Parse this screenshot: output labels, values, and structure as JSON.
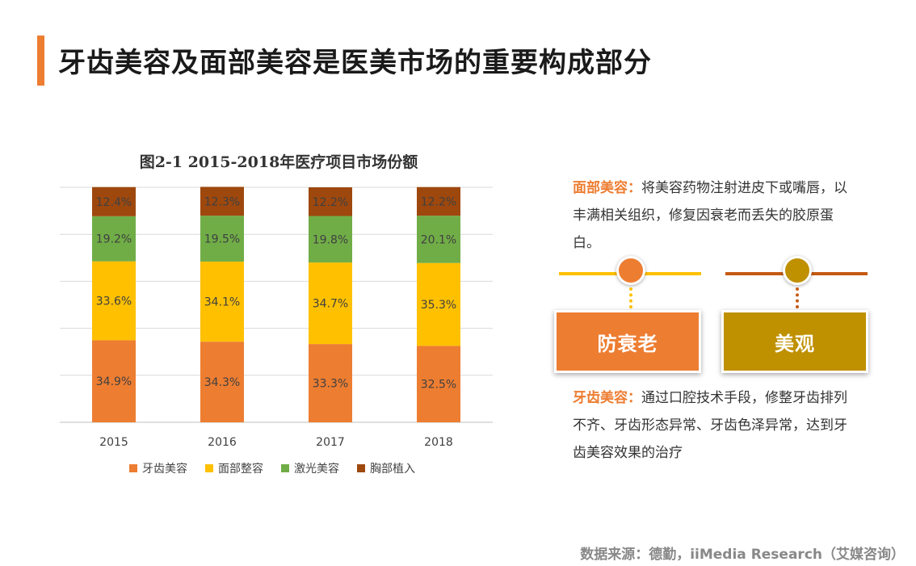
{
  "page_title": "牙齿美容及面部美容是医美市场的重要构成部分",
  "chart_data": {
    "type": "bar",
    "stacked": true,
    "title": "图2-1 2015-2018年医疗项目市场份额",
    "categories": [
      "2015",
      "2016",
      "2017",
      "2018"
    ],
    "series": [
      {
        "name": "牙齿美容",
        "color": "#ED7D31",
        "values": [
          34.9,
          34.3,
          33.3,
          32.5
        ],
        "labels": [
          "34.9%",
          "34.3%",
          "33.3%",
          "32.5%"
        ]
      },
      {
        "name": "面部整容",
        "color": "#FFC000",
        "values": [
          33.6,
          34.1,
          34.7,
          35.3
        ],
        "labels": [
          "33.6%",
          "34.1%",
          "34.7%",
          "35.3%"
        ]
      },
      {
        "name": "激光美容",
        "color": "#70AD47",
        "values": [
          19.2,
          19.5,
          19.8,
          20.1
        ],
        "labels": [
          "19.2%",
          "19.5%",
          "19.8%",
          "20.1%"
        ]
      },
      {
        "name": "胸部植入",
        "color": "#9E480E",
        "values": [
          12.4,
          12.3,
          12.2,
          12.2
        ],
        "labels": [
          "12.4%",
          "12.3%",
          "12.2%",
          "12.2%"
        ]
      }
    ],
    "ylim": [
      0,
      100
    ],
    "grid": true,
    "legend_position": "bottom"
  },
  "facial": {
    "highlight": "面部美容：",
    "text": "将美容药物注射进皮下或嘴唇，以丰满相关组织，修复因衰老而丢失的胶原蛋白。"
  },
  "dental": {
    "highlight": "牙齿美容：",
    "text": "通过口腔技术手段，修整牙齿排列不齐、牙齿形态异常、牙齿色泽异常，达到牙齿美容效果的治疗"
  },
  "boxes": {
    "anti_aging": "防衰老",
    "beauty": "美观"
  },
  "colors": {
    "accent": "#ED7D31",
    "gold": "#BF9000",
    "yellow": "#FFC000",
    "brown": "#C55A11"
  },
  "source": "数据来源：德勤，iiMedia Research（艾媒咨询）"
}
